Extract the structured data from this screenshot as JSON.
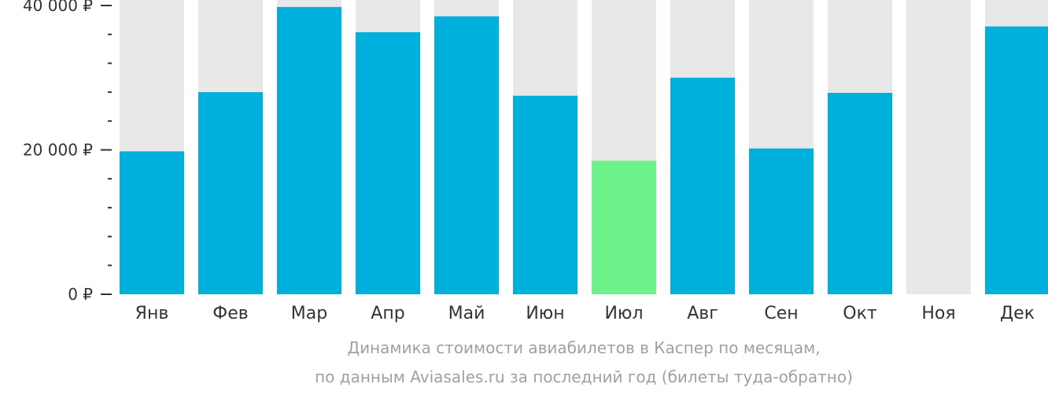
{
  "chart_data": {
    "type": "bar",
    "categories": [
      "Янв",
      "Фев",
      "Мар",
      "Апр",
      "Май",
      "Июн",
      "Июл",
      "Авг",
      "Сен",
      "Окт",
      "Ноя",
      "Дек"
    ],
    "values": [
      19800,
      28000,
      39800,
      36300,
      38500,
      27500,
      18500,
      30000,
      20200,
      27900,
      null,
      37100
    ],
    "ylim": [
      0,
      40000
    ],
    "yticks": [
      {
        "value": 0,
        "label": "0 ₽"
      },
      {
        "value": 20000,
        "label": "20 000 ₽"
      },
      {
        "value": 40000,
        "label": "40 000 ₽"
      }
    ],
    "minor_tick_step": 4000,
    "highlight_category": "Июл",
    "colors": {
      "bar": "#00b0dc",
      "highlight": "#6df28a",
      "background_bar": "#e8e8e8",
      "axis": "#333333"
    },
    "caption_lines": [
      "Динамика стоимости авиабилетов в Каспер по месяцам,",
      "по данным Aviasales.ru за последний год (билеты туда-обратно)"
    ]
  }
}
